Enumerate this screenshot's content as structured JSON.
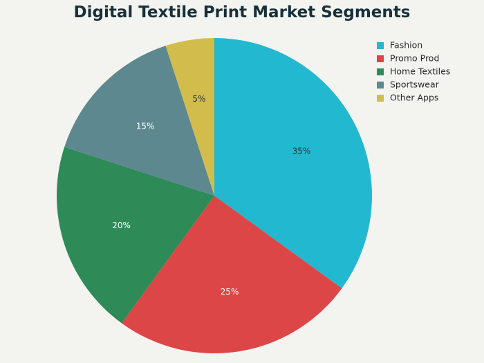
{
  "chart_data": {
    "type": "pie",
    "title": "Digital Textile Print Market Segments",
    "legend_position": "top-right",
    "slices": [
      {
        "label": "Fashion",
        "value": 35,
        "display": "35%",
        "color": "#22b8cf",
        "label_color": "#1f2f35"
      },
      {
        "label": "Promo Prod",
        "value": 25,
        "display": "25%",
        "color": "#dc4647",
        "label_color": "#ffffff"
      },
      {
        "label": "Home Textiles",
        "value": 20,
        "display": "20%",
        "color": "#2e8a57",
        "label_color": "#ffffff"
      },
      {
        "label": "Sportswear",
        "value": 15,
        "display": "15%",
        "color": "#5e8890",
        "label_color": "#ffffff"
      },
      {
        "label": "Other Apps",
        "value": 5,
        "display": "5%",
        "color": "#d2bc4c",
        "label_color": "#1f2f35"
      }
    ]
  }
}
